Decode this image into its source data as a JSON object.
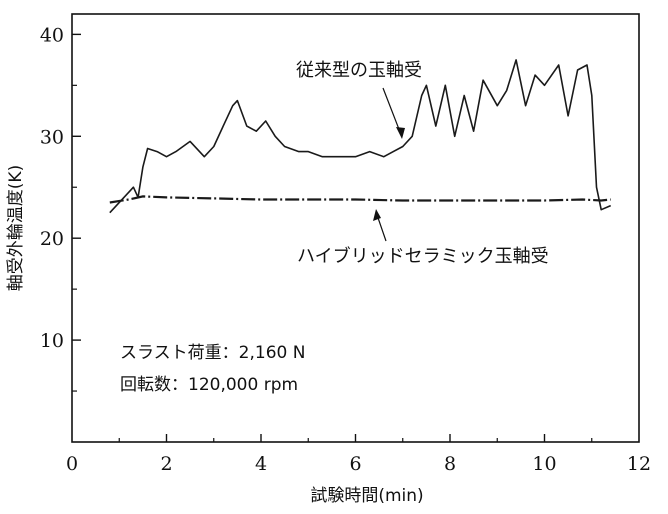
{
  "chart_data": {
    "type": "line",
    "xlabel": "試験時間(min)",
    "ylabel": "軸受外輪温度(K)",
    "xlim": [
      0,
      12
    ],
    "ylim": [
      0,
      42
    ],
    "x_ticks": [
      0,
      2,
      4,
      6,
      8,
      10,
      12
    ],
    "y_ticks": [
      10,
      20,
      30,
      40
    ],
    "grid": false,
    "series": [
      {
        "name": "従来型の玉軸受",
        "x": [
          0.8,
          1.2,
          1.3,
          1.4,
          1.5,
          1.6,
          1.8,
          2.0,
          2.2,
          2.5,
          2.8,
          3.0,
          3.2,
          3.4,
          3.5,
          3.7,
          3.9,
          4.1,
          4.3,
          4.5,
          4.8,
          5.0,
          5.3,
          5.6,
          6.0,
          6.3,
          6.6,
          6.8,
          7.0,
          7.2,
          7.4,
          7.5,
          7.7,
          7.9,
          8.1,
          8.3,
          8.5,
          8.7,
          9.0,
          9.2,
          9.4,
          9.6,
          9.8,
          10.0,
          10.3,
          10.5,
          10.7,
          10.9,
          11.0,
          11.1,
          11.2,
          11.4
        ],
        "y": [
          22.5,
          24.5,
          25.0,
          24.0,
          27.0,
          28.8,
          28.5,
          28.0,
          28.5,
          29.5,
          28.0,
          29.0,
          31.0,
          33.0,
          33.5,
          31.0,
          30.5,
          31.5,
          30.0,
          29.0,
          28.5,
          28.5,
          28.0,
          28.0,
          28.0,
          28.5,
          28.0,
          28.5,
          29.0,
          30.0,
          34.0,
          35.0,
          31.0,
          35.0,
          30.0,
          34.0,
          30.5,
          35.5,
          33.0,
          34.5,
          37.5,
          33.0,
          36.0,
          35.0,
          37.0,
          32.0,
          36.5,
          37.0,
          34.0,
          25.0,
          22.8,
          23.2
        ]
      },
      {
        "name": "ハイブリッドセラミック玉軸受",
        "x": [
          0.8,
          1.2,
          1.5,
          2.0,
          3.0,
          4.0,
          5.0,
          6.0,
          7.0,
          8.0,
          9.0,
          10.0,
          10.8,
          11.2,
          11.4
        ],
        "y": [
          23.5,
          23.8,
          24.1,
          24.0,
          23.9,
          23.8,
          23.8,
          23.8,
          23.7,
          23.7,
          23.7,
          23.7,
          23.8,
          23.7,
          23.8
        ]
      }
    ],
    "annotations": {
      "conventional_label": "従来型の玉軸受",
      "hybrid_label": "ハイブリッドセラミック玉軸受",
      "thrust_load": "スラスト荷重：2,160 N",
      "rotation_speed": "回転数：120,000 rpm"
    },
    "line_color": "#1a1a1a"
  }
}
